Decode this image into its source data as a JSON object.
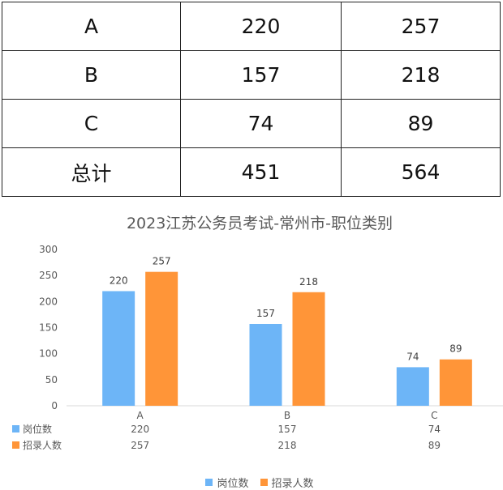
{
  "table": {
    "rows": [
      {
        "label": "A",
        "v1": "220",
        "v2": "257"
      },
      {
        "label": "B",
        "v1": "157",
        "v2": "218"
      },
      {
        "label": "C",
        "v1": "74",
        "v2": "89"
      },
      {
        "label": "总计",
        "v1": "451",
        "v2": "564"
      }
    ]
  },
  "chart_data": {
    "type": "bar",
    "title": "2023江苏公务员考试-常州市-职位类别",
    "categories": [
      "A",
      "B",
      "C"
    ],
    "series": [
      {
        "name": "岗位数",
        "values": [
          220,
          157,
          74
        ],
        "color": "#6db5f7"
      },
      {
        "name": "招录人数",
        "values": [
          257,
          218,
          89
        ],
        "color": "#ff9538"
      }
    ],
    "ylim": [
      0,
      300
    ],
    "yticks": [
      "0",
      "50",
      "100",
      "150",
      "200",
      "250",
      "300"
    ],
    "legend_position": "bottom",
    "data_table": true,
    "grid": false
  }
}
